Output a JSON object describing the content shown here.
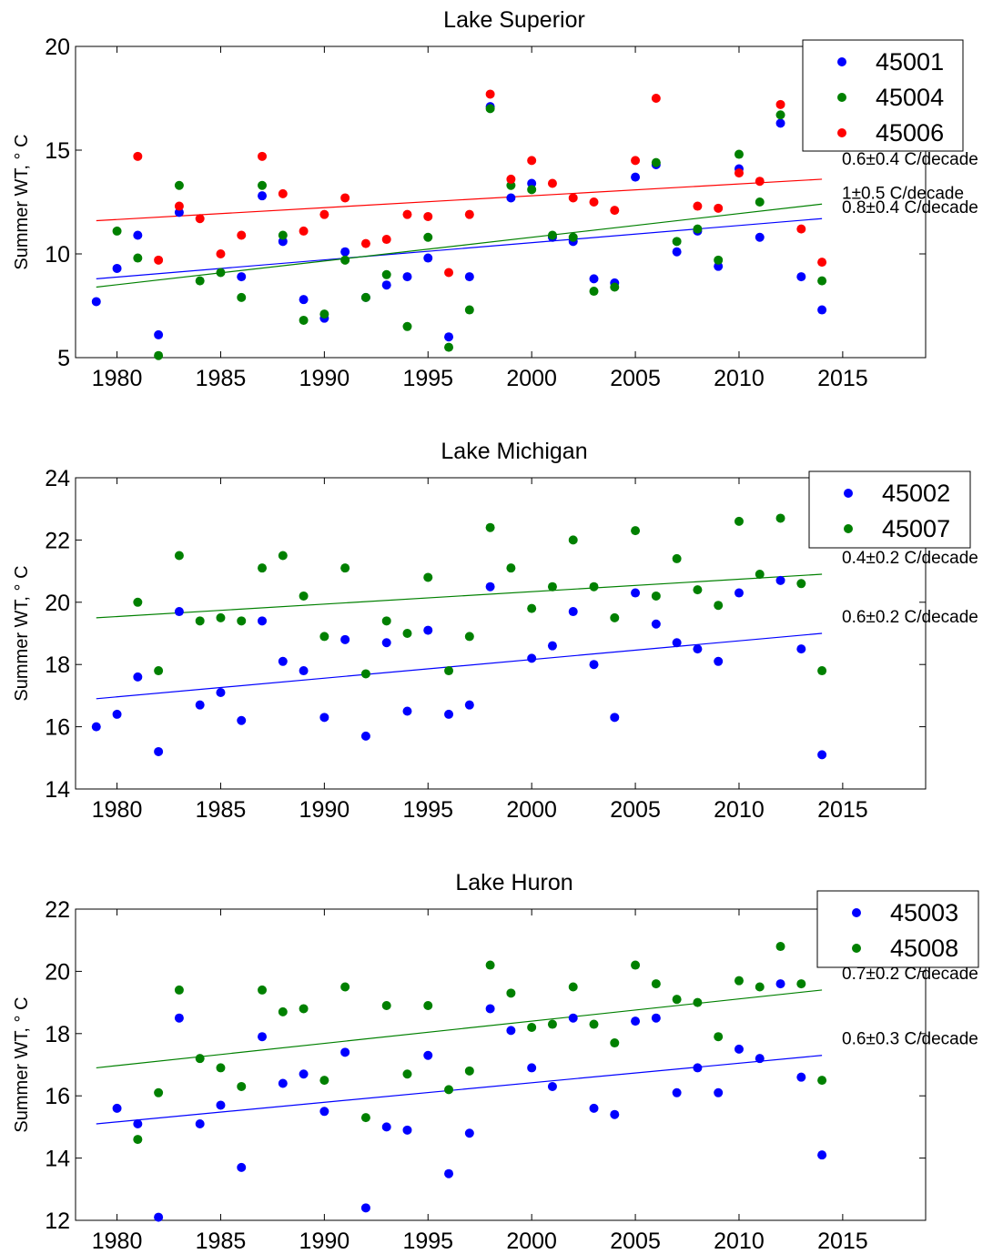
{
  "chart_data": [
    {
      "type": "scatter",
      "title": "Lake Superior",
      "ylabel": "Summer WT, ° C",
      "xlim": [
        1978,
        2019
      ],
      "ylim": [
        5,
        20
      ],
      "xticks": [
        1980,
        1985,
        1990,
        1995,
        2000,
        2005,
        2010,
        2015
      ],
      "yticks": [
        5,
        10,
        15,
        20
      ],
      "legend_position": "top-right",
      "series": [
        {
          "name": "45001",
          "color": "#0000ff",
          "x": [
            1979,
            1980,
            1981,
            1982,
            1983,
            1986,
            1987,
            1988,
            1989,
            1990,
            1991,
            1992,
            1993,
            1994,
            1995,
            1996,
            1997,
            1998,
            1999,
            2000,
            2001,
            2002,
            2003,
            2004,
            2005,
            2006,
            2007,
            2008,
            2009,
            2010,
            2011,
            2012,
            2013,
            2014
          ],
          "y": [
            7.7,
            9.3,
            10.9,
            6.1,
            12.0,
            8.9,
            12.8,
            10.6,
            7.8,
            6.9,
            10.1,
            7.9,
            8.5,
            8.9,
            9.8,
            6.0,
            8.9,
            17.1,
            12.7,
            13.4,
            10.8,
            10.6,
            8.8,
            8.6,
            13.7,
            14.3,
            10.1,
            11.1,
            9.4,
            14.1,
            10.8,
            16.3,
            8.9,
            7.3
          ],
          "trend": {
            "x": [
              1979,
              2014
            ],
            "y": [
              8.8,
              11.7
            ],
            "label": "0.8±0.4 C/decade"
          }
        },
        {
          "name": "45004",
          "color": "#008000",
          "x": [
            1980,
            1981,
            1982,
            1983,
            1984,
            1985,
            1986,
            1987,
            1988,
            1989,
            1990,
            1991,
            1992,
            1993,
            1994,
            1995,
            1996,
            1997,
            1998,
            1999,
            2000,
            2001,
            2002,
            2003,
            2004,
            2006,
            2007,
            2008,
            2009,
            2010,
            2011,
            2012,
            2014
          ],
          "y": [
            11.1,
            9.8,
            5.1,
            13.3,
            8.7,
            9.1,
            7.9,
            13.3,
            10.9,
            6.8,
            7.1,
            9.7,
            7.9,
            9.0,
            6.5,
            10.8,
            5.5,
            7.3,
            17.0,
            13.3,
            13.1,
            10.9,
            10.8,
            8.2,
            8.4,
            14.4,
            10.6,
            11.2,
            9.7,
            14.8,
            12.5,
            16.7,
            8.7
          ],
          "trend": {
            "x": [
              1979,
              2014
            ],
            "y": [
              8.4,
              12.4
            ],
            "label": "1±0.5 C/decade"
          }
        },
        {
          "name": "45006",
          "color": "#ff0000",
          "x": [
            1981,
            1982,
            1983,
            1984,
            1985,
            1986,
            1987,
            1988,
            1989,
            1990,
            1991,
            1992,
            1993,
            1994,
            1995,
            1996,
            1997,
            1998,
            1999,
            2000,
            2001,
            2002,
            2003,
            2004,
            2005,
            2006,
            2008,
            2009,
            2010,
            2011,
            2012,
            2013,
            2014
          ],
          "y": [
            14.7,
            9.7,
            12.3,
            11.7,
            10.0,
            10.9,
            14.7,
            12.9,
            11.1,
            11.9,
            12.7,
            10.5,
            10.7,
            11.9,
            11.8,
            9.1,
            11.9,
            17.7,
            13.6,
            14.5,
            13.4,
            12.7,
            12.5,
            12.1,
            14.5,
            17.5,
            12.3,
            12.2,
            13.9,
            13.5,
            17.2,
            11.2,
            9.6
          ],
          "trend": {
            "x": [
              1979,
              2014
            ],
            "y": [
              11.6,
              13.6
            ],
            "label": "0.6±0.4 C/decade"
          }
        }
      ]
    },
    {
      "type": "scatter",
      "title": "Lake Michigan",
      "ylabel": "Summer WT, ° C",
      "xlim": [
        1978,
        2019
      ],
      "ylim": [
        14,
        24
      ],
      "xticks": [
        1980,
        1985,
        1990,
        1995,
        2000,
        2005,
        2010,
        2015
      ],
      "yticks": [
        14,
        16,
        18,
        20,
        22,
        24
      ],
      "legend_position": "top-right",
      "series": [
        {
          "name": "45002",
          "color": "#0000ff",
          "x": [
            1979,
            1980,
            1981,
            1982,
            1983,
            1984,
            1985,
            1986,
            1987,
            1988,
            1989,
            1990,
            1991,
            1992,
            1993,
            1994,
            1995,
            1996,
            1997,
            1998,
            2000,
            2001,
            2002,
            2003,
            2004,
            2005,
            2006,
            2007,
            2008,
            2009,
            2010,
            2012,
            2013,
            2014
          ],
          "y": [
            16.0,
            16.4,
            17.6,
            15.2,
            19.7,
            16.7,
            17.1,
            16.2,
            19.4,
            18.1,
            17.8,
            16.3,
            18.8,
            15.7,
            18.7,
            16.5,
            19.1,
            16.4,
            16.7,
            20.5,
            18.2,
            18.6,
            19.7,
            18.0,
            16.3,
            20.3,
            19.3,
            18.7,
            18.5,
            18.1,
            20.3,
            20.7,
            18.5,
            15.1
          ],
          "trend": {
            "x": [
              1979,
              2014
            ],
            "y": [
              16.9,
              19.0
            ],
            "label": "0.6±0.2 C/decade"
          }
        },
        {
          "name": "45007",
          "color": "#008000",
          "x": [
            1981,
            1982,
            1983,
            1984,
            1985,
            1986,
            1987,
            1988,
            1989,
            1990,
            1991,
            1992,
            1993,
            1994,
            1995,
            1996,
            1997,
            1998,
            1999,
            2000,
            2001,
            2002,
            2003,
            2004,
            2005,
            2006,
            2007,
            2008,
            2009,
            2010,
            2011,
            2012,
            2013,
            2014
          ],
          "y": [
            20.0,
            17.8,
            21.5,
            19.4,
            19.5,
            19.4,
            21.1,
            21.5,
            20.2,
            18.9,
            21.1,
            17.7,
            19.4,
            19.0,
            20.8,
            17.8,
            18.9,
            22.4,
            21.1,
            19.8,
            20.5,
            22.0,
            20.5,
            19.5,
            22.3,
            20.2,
            21.4,
            20.4,
            19.9,
            22.6,
            20.9,
            22.7,
            20.6,
            17.8
          ],
          "trend": {
            "x": [
              1979,
              2014
            ],
            "y": [
              19.5,
              20.9
            ],
            "label": "0.4±0.2 C/decade"
          }
        }
      ]
    },
    {
      "type": "scatter",
      "title": "Lake Huron",
      "ylabel": "Summer WT, ° C",
      "xlim": [
        1978,
        2019
      ],
      "ylim": [
        12,
        22
      ],
      "xticks": [
        1980,
        1985,
        1990,
        1995,
        2000,
        2005,
        2010,
        2015
      ],
      "yticks": [
        12,
        14,
        16,
        18,
        20,
        22
      ],
      "legend_position": "top-right",
      "series": [
        {
          "name": "45003",
          "color": "#0000ff",
          "x": [
            1980,
            1981,
            1982,
            1983,
            1984,
            1985,
            1986,
            1987,
            1988,
            1989,
            1990,
            1991,
            1992,
            1993,
            1994,
            1995,
            1996,
            1997,
            1998,
            1999,
            2000,
            2001,
            2002,
            2003,
            2004,
            2005,
            2006,
            2007,
            2008,
            2009,
            2010,
            2011,
            2012,
            2013,
            2014
          ],
          "y": [
            15.6,
            15.1,
            12.1,
            18.5,
            15.1,
            15.7,
            13.7,
            17.9,
            16.4,
            16.7,
            15.5,
            17.4,
            12.4,
            15.0,
            14.9,
            17.3,
            13.5,
            14.8,
            18.8,
            18.1,
            16.9,
            16.3,
            18.5,
            15.6,
            15.4,
            18.4,
            18.5,
            16.1,
            16.9,
            16.1,
            17.5,
            17.2,
            19.6,
            16.6,
            14.1
          ],
          "trend": {
            "x": [
              1979,
              2014
            ],
            "y": [
              15.1,
              17.3
            ],
            "label": "0.6±0.3 C/decade"
          }
        },
        {
          "name": "45008",
          "color": "#008000",
          "x": [
            1981,
            1982,
            1983,
            1984,
            1985,
            1986,
            1987,
            1988,
            1989,
            1990,
            1991,
            1992,
            1993,
            1994,
            1995,
            1996,
            1997,
            1998,
            1999,
            2000,
            2001,
            2002,
            2003,
            2004,
            2005,
            2006,
            2007,
            2008,
            2009,
            2010,
            2011,
            2012,
            2013,
            2014
          ],
          "y": [
            14.6,
            16.1,
            19.4,
            17.2,
            16.9,
            16.3,
            19.4,
            18.7,
            18.8,
            16.5,
            19.5,
            15.3,
            18.9,
            16.7,
            18.9,
            16.2,
            16.8,
            20.2,
            19.3,
            18.2,
            18.3,
            19.5,
            18.3,
            17.7,
            20.2,
            19.6,
            19.1,
            19.0,
            17.9,
            19.7,
            19.5,
            20.8,
            19.6,
            16.5
          ],
          "trend": {
            "x": [
              1979,
              2014
            ],
            "y": [
              16.9,
              19.4
            ],
            "label": "0.7±0.2 C/decade"
          }
        }
      ]
    }
  ]
}
